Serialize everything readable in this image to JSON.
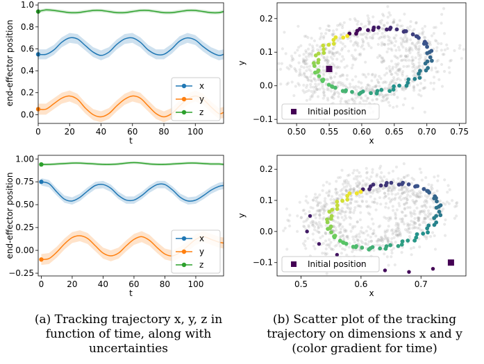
{
  "captions": {
    "a": [
      "(a) Tracking trajectory x, y, z in",
      "function of time, along with",
      "uncertainties"
    ],
    "b": [
      "(b) Scatter plot of the tracking",
      "trajectory on dimensions x and y",
      "(color gradient for time)"
    ]
  },
  "colors": {
    "x": "#1f77b4",
    "y": "#ff7f0e",
    "z": "#2ca02c",
    "initial": "#440154",
    "cloud": "#9e9e9e"
  },
  "chart_data": [
    {
      "type": "line",
      "xlabel": "t",
      "ylabel": "end-effector position",
      "xlim": [
        0,
        118
      ],
      "ylim": [
        -0.08,
        1.02
      ],
      "xticks": [
        0,
        20,
        40,
        60,
        80,
        100
      ],
      "yticks": [
        "0.0",
        "0.2",
        "0.4",
        "0.6",
        "0.8",
        "1.0"
      ],
      "ytick_values": [
        0.0,
        0.2,
        0.4,
        0.6,
        0.8,
        1.0
      ],
      "legend": {
        "placement": "bottom-right",
        "entries": [
          "x",
          "y",
          "z"
        ]
      },
      "series": [
        {
          "name": "x",
          "x": [
            0,
            5,
            10,
            15,
            20,
            25,
            30,
            35,
            40,
            45,
            50,
            55,
            60,
            65,
            70,
            75,
            80,
            85,
            90,
            95,
            100,
            105,
            110,
            115,
            118
          ],
          "values": [
            0.55,
            0.55,
            0.59,
            0.66,
            0.7,
            0.69,
            0.63,
            0.57,
            0.54,
            0.57,
            0.64,
            0.69,
            0.7,
            0.66,
            0.59,
            0.55,
            0.55,
            0.6,
            0.67,
            0.7,
            0.68,
            0.62,
            0.57,
            0.54,
            0.55
          ],
          "band": 0.045
        },
        {
          "name": "y",
          "x": [
            0,
            5,
            10,
            15,
            20,
            25,
            30,
            35,
            40,
            45,
            50,
            55,
            60,
            65,
            70,
            75,
            80,
            85,
            90,
            95,
            100,
            105,
            110,
            115,
            118
          ],
          "values": [
            0.05,
            0.05,
            0.1,
            0.15,
            0.17,
            0.14,
            0.06,
            0.0,
            -0.02,
            0.01,
            0.08,
            0.14,
            0.17,
            0.15,
            0.08,
            0.01,
            -0.02,
            0.01,
            0.08,
            0.14,
            0.17,
            0.14,
            0.07,
            0.01,
            0.02
          ],
          "band": 0.05
        },
        {
          "name": "z",
          "x": [
            0,
            5,
            10,
            15,
            20,
            25,
            30,
            35,
            40,
            45,
            50,
            55,
            60,
            65,
            70,
            75,
            80,
            85,
            90,
            95,
            100,
            105,
            110,
            115,
            118
          ],
          "values": [
            0.94,
            0.955,
            0.95,
            0.94,
            0.93,
            0.93,
            0.94,
            0.95,
            0.95,
            0.94,
            0.93,
            0.93,
            0.94,
            0.95,
            0.95,
            0.94,
            0.93,
            0.93,
            0.94,
            0.95,
            0.95,
            0.94,
            0.93,
            0.93,
            0.94
          ],
          "band": 0.015
        }
      ]
    },
    {
      "type": "scatter",
      "xlabel": "x",
      "ylabel": "y",
      "xlim": [
        0.47,
        0.76
      ],
      "ylim": [
        -0.112,
        0.247
      ],
      "xticks": [
        "0.50",
        "0.55",
        "0.60",
        "0.65",
        "0.70",
        "0.75"
      ],
      "xtick_values": [
        0.5,
        0.55,
        0.6,
        0.65,
        0.7,
        0.75
      ],
      "yticks": [
        "−0.1",
        "0.0",
        "0.1",
        "0.2"
      ],
      "ytick_values": [
        -0.1,
        0.0,
        0.1,
        0.2
      ],
      "legend": {
        "placement": "bottom-left",
        "entries": [
          "Initial position"
        ]
      },
      "initial_position": [
        0.55,
        0.05
      ],
      "trajectory_ellipse": {
        "center": [
          0.617,
          0.075
        ],
        "radius_x": 0.083,
        "radius_y": 0.1,
        "tilt_deg": -30
      },
      "cloud_ellipse": {
        "center": [
          0.61,
          0.07
        ],
        "radius_x": 0.115,
        "radius_y": 0.14,
        "tilt_deg": -30
      }
    },
    {
      "type": "line",
      "xlabel": "t",
      "ylabel": "end-effector position",
      "xlim": [
        -2,
        118
      ],
      "ylim": [
        -0.28,
        1.04
      ],
      "xticks": [
        0,
        20,
        40,
        60,
        80,
        100
      ],
      "yticks": [
        "−0.25",
        "0.00",
        "0.25",
        "0.50",
        "0.75",
        "1.00"
      ],
      "ytick_values": [
        -0.25,
        0.0,
        0.25,
        0.5,
        0.75,
        1.0
      ],
      "legend": {
        "placement": "bottom-right",
        "entries": [
          "x",
          "y",
          "z"
        ]
      },
      "series": [
        {
          "name": "x",
          "x": [
            0,
            5,
            10,
            15,
            20,
            25,
            30,
            35,
            40,
            45,
            50,
            55,
            60,
            65,
            70,
            75,
            80,
            85,
            90,
            95,
            100,
            105,
            110,
            115,
            118
          ],
          "values": [
            0.75,
            0.73,
            0.64,
            0.56,
            0.54,
            0.58,
            0.65,
            0.71,
            0.72,
            0.68,
            0.6,
            0.55,
            0.55,
            0.6,
            0.67,
            0.72,
            0.72,
            0.66,
            0.58,
            0.54,
            0.55,
            0.6,
            0.66,
            0.7,
            0.71
          ],
          "band": 0.04
        },
        {
          "name": "y",
          "x": [
            0,
            5,
            10,
            15,
            20,
            25,
            30,
            35,
            40,
            45,
            50,
            55,
            60,
            65,
            70,
            75,
            80,
            85,
            90,
            95,
            100,
            105,
            110,
            115,
            118
          ],
          "values": [
            -0.1,
            -0.09,
            -0.02,
            0.07,
            0.14,
            0.16,
            0.13,
            0.05,
            -0.03,
            -0.06,
            -0.03,
            0.05,
            0.12,
            0.15,
            0.11,
            0.03,
            -0.04,
            -0.06,
            -0.02,
            0.05,
            0.12,
            0.15,
            0.12,
            0.09,
            0.08
          ],
          "band": 0.06
        },
        {
          "name": "z",
          "x": [
            0,
            5,
            10,
            15,
            20,
            25,
            30,
            35,
            40,
            45,
            50,
            55,
            60,
            65,
            70,
            75,
            80,
            85,
            90,
            95,
            100,
            105,
            110,
            115,
            118
          ],
          "values": [
            0.94,
            0.94,
            0.945,
            0.95,
            0.955,
            0.955,
            0.95,
            0.945,
            0.94,
            0.94,
            0.945,
            0.955,
            0.96,
            0.955,
            0.945,
            0.94,
            0.94,
            0.945,
            0.95,
            0.955,
            0.955,
            0.95,
            0.945,
            0.945,
            0.94
          ],
          "band": 0.015
        }
      ]
    },
    {
      "type": "scatter",
      "xlabel": "x",
      "ylabel": "y",
      "xlim": [
        0.46,
        0.775
      ],
      "ylim": [
        -0.143,
        0.245
      ],
      "xticks": [
        "0.5",
        "0.6",
        "0.7"
      ],
      "xtick_values": [
        0.5,
        0.6,
        0.7
      ],
      "yticks": [
        "−0.1",
        "0.0",
        "0.1",
        "0.2"
      ],
      "ytick_values": [
        -0.1,
        0.0,
        0.1,
        0.2
      ],
      "legend": {
        "placement": "bottom-left",
        "entries": [
          "Initial position"
        ]
      },
      "initial_position": [
        0.75,
        -0.1
      ],
      "trajectory_ellipse": {
        "center": [
          0.638,
          0.05
        ],
        "radius_x": 0.085,
        "radius_y": 0.11,
        "tilt_deg": -30
      },
      "approach_path": [
        [
          0.75,
          -0.1
        ],
        [
          0.72,
          -0.12
        ],
        [
          0.68,
          -0.13
        ],
        [
          0.64,
          -0.125
        ],
        [
          0.6,
          -0.105
        ],
        [
          0.56,
          -0.075
        ],
        [
          0.53,
          -0.04
        ],
        [
          0.51,
          0.0
        ],
        [
          0.515,
          0.05
        ]
      ],
      "cloud_ellipse": {
        "center": [
          0.62,
          0.055
        ],
        "radius_x": 0.115,
        "radius_y": 0.14,
        "tilt_deg": -30
      }
    }
  ]
}
